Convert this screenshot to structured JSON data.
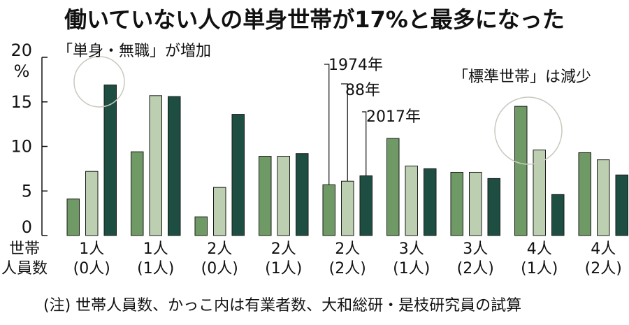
{
  "chart_data": {
    "type": "bar",
    "title": "働いていない人の単身世帯が17%と最多になった",
    "ylabel": "%",
    "ylim": [
      0,
      20
    ],
    "yticks": [
      0,
      5,
      10,
      15,
      20
    ],
    "row_header": [
      "世帯",
      "人員数"
    ],
    "categories": [
      [
        "1人",
        "(0人)"
      ],
      [
        "1人",
        "(1人)"
      ],
      [
        "2人",
        "(0人)"
      ],
      [
        "2人",
        "(1人)"
      ],
      [
        "2人",
        "(2人)"
      ],
      [
        "3人",
        "(1人)"
      ],
      [
        "3人",
        "(2人)"
      ],
      [
        "4人",
        "(1人)"
      ],
      [
        "4人",
        "(2人)"
      ]
    ],
    "series": [
      {
        "name": "1974年",
        "color": "#6f9a66",
        "values": [
          4.1,
          9.4,
          2.1,
          8.9,
          5.7,
          10.9,
          7.1,
          14.5,
          9.3
        ]
      },
      {
        "name": "88年",
        "color": "#bccfb1",
        "values": [
          7.2,
          15.7,
          5.4,
          8.9,
          6.1,
          7.8,
          7.1,
          9.6,
          8.5
        ]
      },
      {
        "name": "2017年",
        "color": "#1e4e42",
        "values": [
          16.9,
          15.6,
          13.6,
          9.2,
          6.7,
          7.5,
          6.4,
          4.6,
          6.8
        ]
      }
    ],
    "annotations": [
      "「単身・無職」が増加",
      "「標準世帯」は減少"
    ],
    "note": "(注) 世帯人員数、かっこ内は有業者数、大和総研・是枝研究員の試算",
    "grid": false
  }
}
